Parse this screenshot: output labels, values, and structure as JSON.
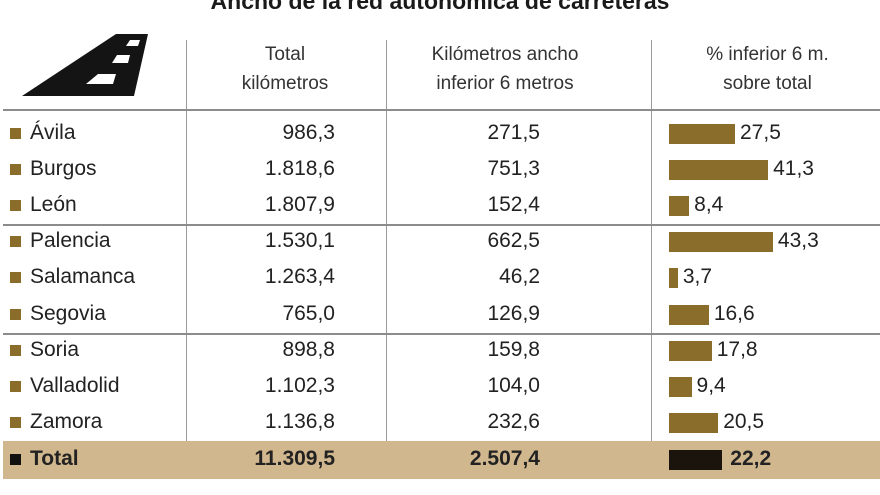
{
  "title": "Ancho de la red autonómica de carreteras",
  "headers": {
    "total_l1": "Total",
    "total_l2": "kilómetros",
    "km_l1": "Kilómetros ancho",
    "km_l2": "inferior 6 metros",
    "pct_l1": "% inferior 6 m.",
    "pct_l2": "sobre total"
  },
  "rows": [
    {
      "name": "Ávila",
      "total": "986,3",
      "km": "271,5",
      "pct": "27,5"
    },
    {
      "name": "Burgos",
      "total": "1.818,6",
      "km": "751,3",
      "pct": "41,3"
    },
    {
      "name": "León",
      "total": "1.807,9",
      "km": "152,4",
      "pct": "8,4"
    },
    {
      "name": "Palencia",
      "total": "1.530,1",
      "km": "662,5",
      "pct": "43,3"
    },
    {
      "name": "Salamanca",
      "total": "1.263,4",
      "km": "46,2",
      "pct": "3,7"
    },
    {
      "name": "Segovia",
      "total": "765,0",
      "km": "126,9",
      "pct": "16,6"
    },
    {
      "name": "Soria",
      "total": "898,8",
      "km": "159,8",
      "pct": "17,8"
    },
    {
      "name": "Valladolid",
      "total": "1.102,3",
      "km": "104,0",
      "pct": "9,4"
    },
    {
      "name": "Zamora",
      "total": "1.136,8",
      "km": "232,6",
      "pct": "20,5"
    }
  ],
  "total_row": {
    "name": "Total",
    "total": "11.309,5",
    "km": "2.507,4",
    "pct": "22,2"
  },
  "chart_data": {
    "type": "bar",
    "categories": [
      "Ávila",
      "Burgos",
      "León",
      "Palencia",
      "Salamanca",
      "Segovia",
      "Soria",
      "Valladolid",
      "Zamora",
      "Total"
    ],
    "series": [
      {
        "name": "% inferior 6 m. sobre total",
        "values": [
          27.5,
          41.3,
          8.4,
          43.3,
          3.7,
          16.6,
          17.8,
          9.4,
          20.5,
          22.2
        ]
      }
    ],
    "total_km": [
      986.3,
      1818.6,
      1807.9,
      1530.1,
      1263.4,
      765.0,
      898.8,
      1102.3,
      1136.8,
      11309.5
    ],
    "km_under_6m": [
      271.5,
      751.3,
      152.4,
      662.5,
      46.2,
      126.9,
      159.8,
      104.0,
      232.6,
      2507.4
    ],
    "ylim": [
      0,
      45
    ]
  },
  "colors": {
    "bar": "#8a6d2a",
    "total_bar": "#1b140c",
    "total_bg": "#d1b78e"
  }
}
